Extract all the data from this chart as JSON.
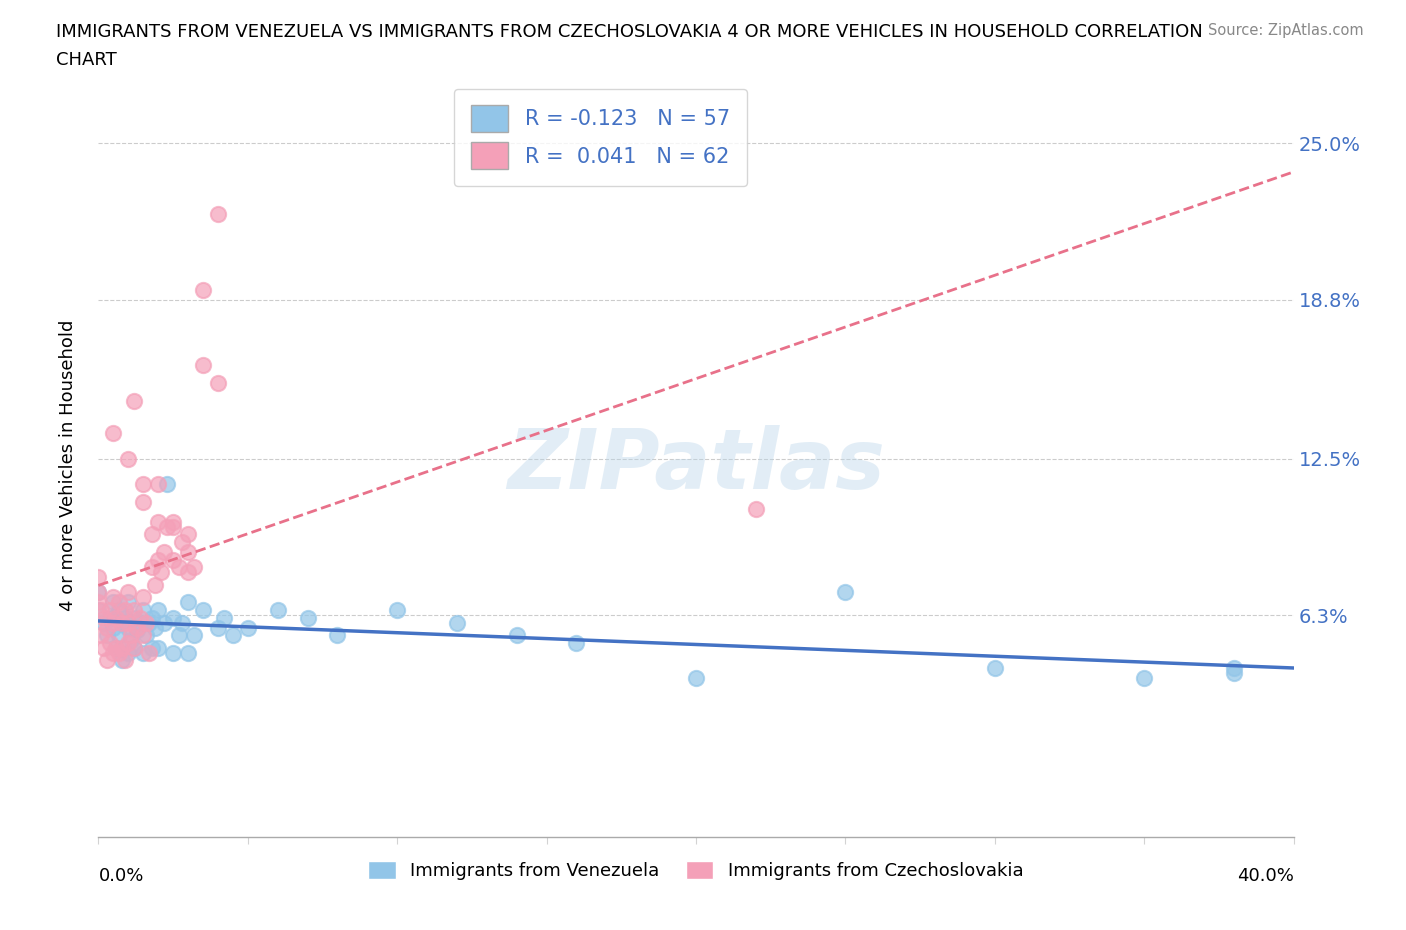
{
  "title_line1": "IMMIGRANTS FROM VENEZUELA VS IMMIGRANTS FROM CZECHOSLOVAKIA 4 OR MORE VEHICLES IN HOUSEHOLD CORRELATION",
  "title_line2": "CHART",
  "source": "Source: ZipAtlas.com",
  "ylabel": "4 or more Vehicles in Household",
  "yticks": [
    0.0,
    0.063,
    0.125,
    0.188,
    0.25
  ],
  "ytick_labels": [
    "",
    "6.3%",
    "12.5%",
    "18.8%",
    "25.0%"
  ],
  "xlim": [
    0.0,
    0.4
  ],
  "ylim": [
    -0.025,
    0.27
  ],
  "blue_color": "#92C5E8",
  "pink_color": "#F4A0B8",
  "blue_line_color": "#4472C4",
  "pink_line_color": "#E8718A",
  "watermark": "ZIPatlas",
  "legend_R_blue": "-0.123",
  "legend_N_blue": "57",
  "legend_R_pink": "0.041",
  "legend_N_pink": "62",
  "blue_scatter_x": [
    0.0,
    0.0,
    0.002,
    0.003,
    0.004,
    0.005,
    0.005,
    0.006,
    0.007,
    0.007,
    0.008,
    0.008,
    0.009,
    0.01,
    0.01,
    0.01,
    0.011,
    0.012,
    0.012,
    0.013,
    0.014,
    0.015,
    0.015,
    0.016,
    0.017,
    0.018,
    0.018,
    0.019,
    0.02,
    0.02,
    0.022,
    0.023,
    0.025,
    0.025,
    0.027,
    0.028,
    0.03,
    0.03,
    0.032,
    0.035,
    0.04,
    0.042,
    0.045,
    0.05,
    0.06,
    0.07,
    0.08,
    0.1,
    0.12,
    0.14,
    0.16,
    0.2,
    0.25,
    0.3,
    0.35,
    0.38,
    0.38
  ],
  "blue_scatter_y": [
    0.065,
    0.072,
    0.06,
    0.055,
    0.062,
    0.058,
    0.068,
    0.05,
    0.055,
    0.065,
    0.045,
    0.06,
    0.062,
    0.048,
    0.058,
    0.068,
    0.053,
    0.05,
    0.062,
    0.057,
    0.06,
    0.048,
    0.065,
    0.055,
    0.06,
    0.05,
    0.062,
    0.058,
    0.05,
    0.065,
    0.06,
    0.115,
    0.048,
    0.062,
    0.055,
    0.06,
    0.048,
    0.068,
    0.055,
    0.065,
    0.058,
    0.062,
    0.055,
    0.058,
    0.065,
    0.062,
    0.055,
    0.065,
    0.06,
    0.055,
    0.052,
    0.038,
    0.072,
    0.042,
    0.038,
    0.04,
    0.042
  ],
  "pink_scatter_x": [
    0.0,
    0.0,
    0.0,
    0.001,
    0.001,
    0.002,
    0.002,
    0.003,
    0.003,
    0.004,
    0.004,
    0.005,
    0.005,
    0.005,
    0.006,
    0.006,
    0.007,
    0.007,
    0.008,
    0.008,
    0.009,
    0.009,
    0.01,
    0.01,
    0.01,
    0.011,
    0.012,
    0.012,
    0.013,
    0.014,
    0.015,
    0.015,
    0.016,
    0.017,
    0.018,
    0.018,
    0.019,
    0.02,
    0.02,
    0.021,
    0.022,
    0.023,
    0.025,
    0.025,
    0.027,
    0.028,
    0.03,
    0.03,
    0.032,
    0.035,
    0.035,
    0.04,
    0.04,
    0.012,
    0.015,
    0.02,
    0.025,
    0.03,
    0.22,
    0.005,
    0.01,
    0.015
  ],
  "pink_scatter_y": [
    0.068,
    0.072,
    0.078,
    0.055,
    0.065,
    0.05,
    0.062,
    0.045,
    0.058,
    0.052,
    0.065,
    0.048,
    0.06,
    0.07,
    0.05,
    0.062,
    0.048,
    0.068,
    0.05,
    0.06,
    0.045,
    0.065,
    0.052,
    0.06,
    0.072,
    0.055,
    0.05,
    0.065,
    0.058,
    0.062,
    0.055,
    0.07,
    0.06,
    0.048,
    0.082,
    0.095,
    0.075,
    0.085,
    0.1,
    0.08,
    0.088,
    0.098,
    0.085,
    0.1,
    0.082,
    0.092,
    0.08,
    0.095,
    0.082,
    0.162,
    0.192,
    0.222,
    0.155,
    0.148,
    0.108,
    0.115,
    0.098,
    0.088,
    0.105,
    0.135,
    0.125,
    0.115
  ]
}
